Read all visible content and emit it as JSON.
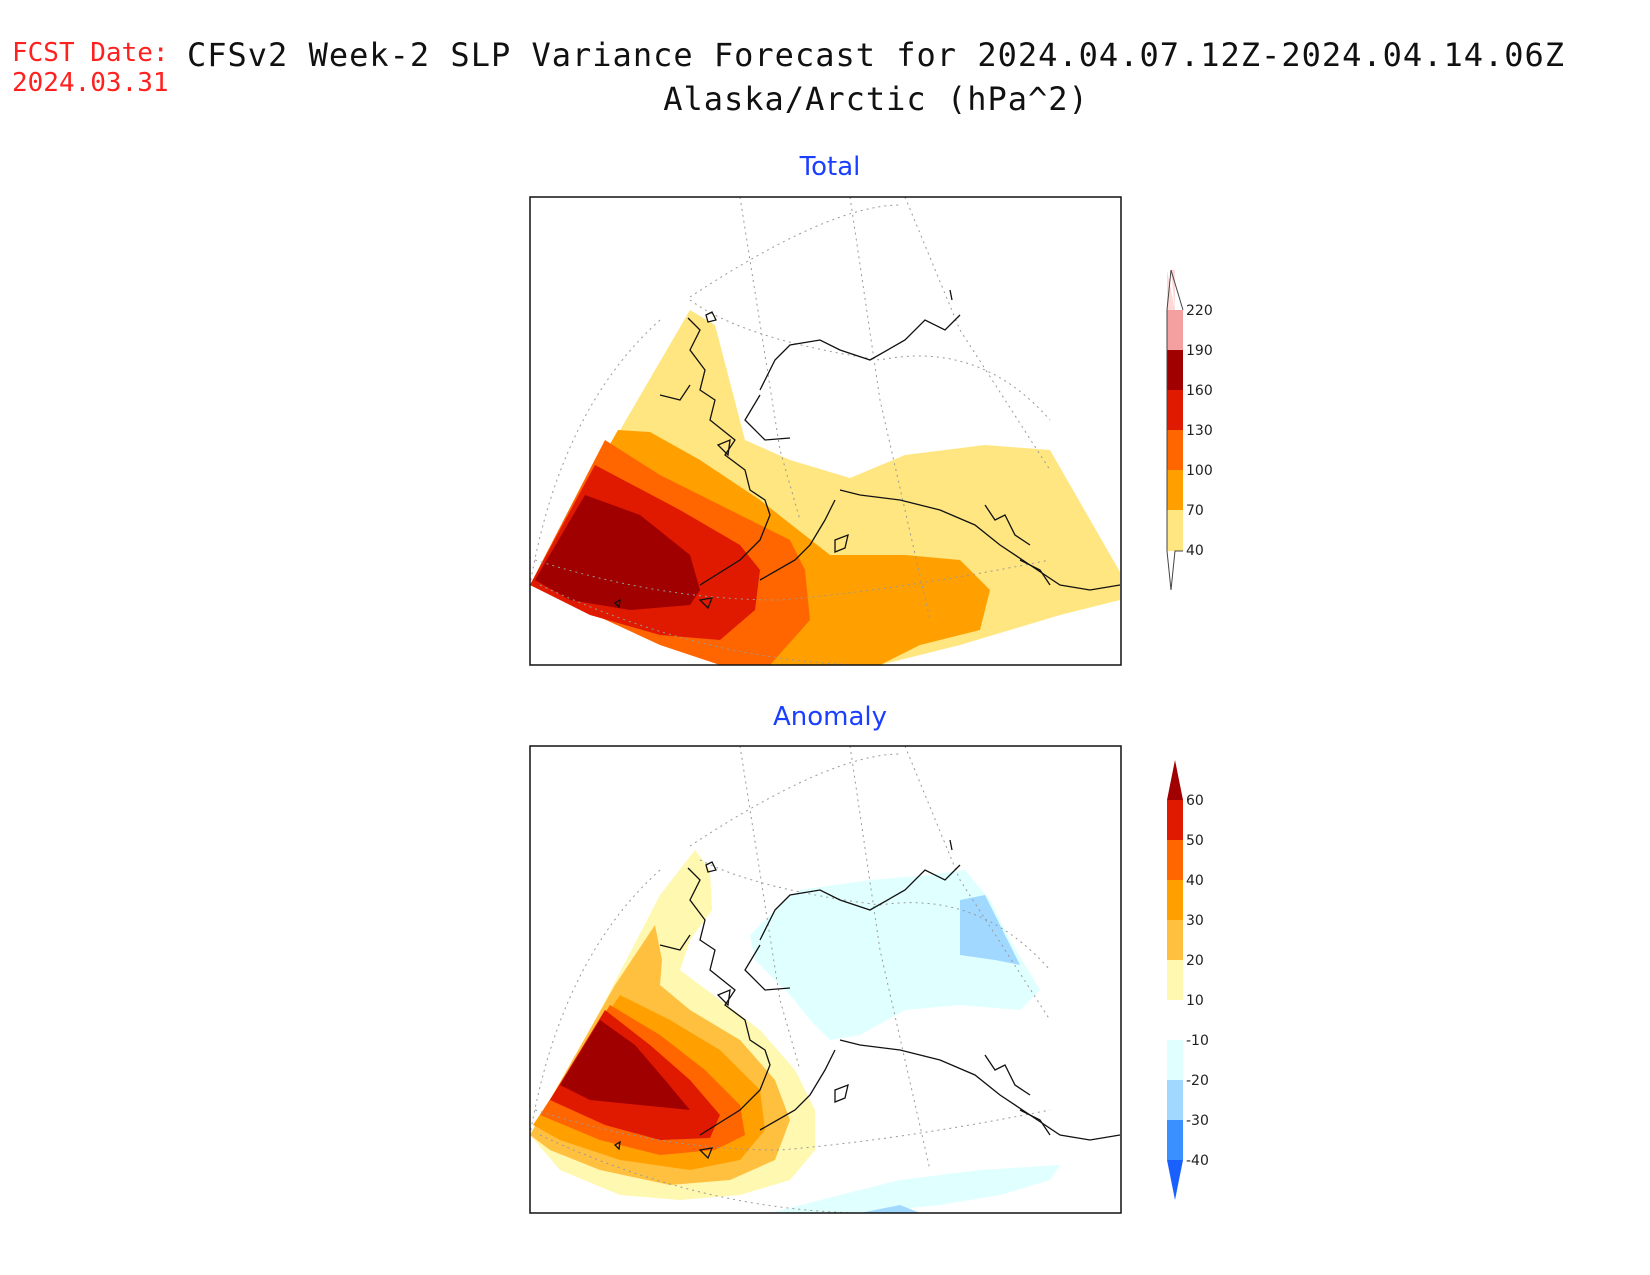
{
  "header": {
    "fcst_label": "FCST Date:",
    "fcst_date": "2024.03.31",
    "title_line1": "CFSv2 Week-2 SLP Variance Forecast for 2024.04.07.12Z-2024.04.14.06Z",
    "title_line2": "Alaska/Arctic (hPa^2)"
  },
  "panels": {
    "total": {
      "title": "Total",
      "colorbar": {
        "levels": [
          "220",
          "190",
          "160",
          "130",
          "100",
          "70",
          "40"
        ],
        "colors": [
          "#ffd8d8",
          "#f4a0a0",
          "#a00000",
          "#e01a00",
          "#ff6600",
          "#ffa000",
          "#ffe680"
        ]
      }
    },
    "anomaly": {
      "title": "Anomaly",
      "colorbar": {
        "levels": [
          "60",
          "50",
          "40",
          "30",
          "20",
          "10",
          "-10",
          "-20",
          "-30",
          "-40"
        ],
        "colors": [
          "#a00000",
          "#e01a00",
          "#ff6600",
          "#ffa000",
          "#ffc040",
          "#fff8b0",
          "#ffffff",
          "#e0ffff",
          "#a0d8ff",
          "#3a90ff",
          "#1a60ff"
        ]
      }
    }
  }
}
